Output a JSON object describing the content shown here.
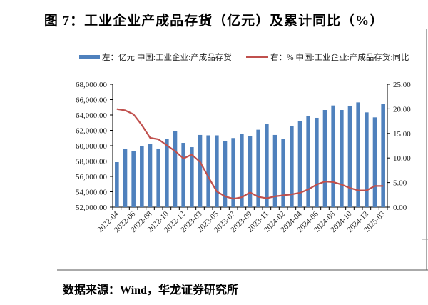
{
  "title": "图 7：工业企业产成品存货（亿元）及累计同比（%）",
  "source": "数据来源：Wind，华龙证券研究所",
  "chart_data": {
    "type": "bar+line",
    "categories": [
      "2022-04",
      "2022-05",
      "2022-06",
      "2022-07",
      "2022-08",
      "2022-09",
      "2022-10",
      "2022-11",
      "2022-12",
      "2023-02",
      "2023-03",
      "2023-04",
      "2023-05",
      "2023-06",
      "2023-07",
      "2023-08",
      "2023-09",
      "2023-10",
      "2023-11",
      "2023-12",
      "2024-02",
      "2024-03",
      "2024-04",
      "2024-05",
      "2024-06",
      "2024-07",
      "2024-08",
      "2024-09",
      "2024-10",
      "2024-11",
      "2024-12",
      "2025-02",
      "2025-03"
    ],
    "x_tick_labels": [
      "2022-04",
      "2022-06",
      "2022-08",
      "2022-10",
      "2022-12",
      "2023-03",
      "2023-05",
      "2023-07",
      "2023-09",
      "2023-11",
      "2024-02",
      "2024-04",
      "2024-06",
      "2024-08",
      "2024-10",
      "2024-12",
      "2025-03"
    ],
    "series": [
      {
        "name": "左：亿元 中国:工业企业:产成品存货",
        "type": "bar",
        "axis": "left",
        "color": "#4f81bd",
        "values": [
          57860,
          59540,
          59260,
          60000,
          60190,
          59630,
          60930,
          61950,
          60370,
          59810,
          61400,
          61350,
          61350,
          60560,
          61000,
          61580,
          61300,
          62080,
          62850,
          61400,
          60900,
          62570,
          63250,
          63840,
          63630,
          64650,
          65240,
          64650,
          65210,
          65640,
          64340,
          63690,
          65460
        ]
      },
      {
        "name": "右：% 中国:工业企业:产成品存货:同比",
        "type": "line",
        "axis": "right",
        "color": "#c0504d",
        "values": [
          19.96,
          19.7,
          18.9,
          16.7,
          14.1,
          13.8,
          12.6,
          11.4,
          9.9,
          10.7,
          9.2,
          6.1,
          3.2,
          2.2,
          1.7,
          2.0,
          3.0,
          2.1,
          1.8,
          2.2,
          2.4,
          2.6,
          2.9,
          3.6,
          4.6,
          5.2,
          5.1,
          4.6,
          3.9,
          3.4,
          3.4,
          4.3,
          4.3
        ]
      }
    ],
    "y_left": {
      "range": [
        52000,
        68000
      ],
      "ticks": [
        "52,000.00",
        "54,000.00",
        "56,000.00",
        "58,000.00",
        "60,000.00",
        "62,000.00",
        "64,000.00",
        "66,000.00",
        "68,000.00"
      ]
    },
    "y_right": {
      "range": [
        0,
        25
      ],
      "ticks": [
        "0.00",
        "5.00",
        "10.00",
        "15.00",
        "20.00",
        "25.00"
      ]
    },
    "grid": false,
    "legend_position": "top"
  }
}
